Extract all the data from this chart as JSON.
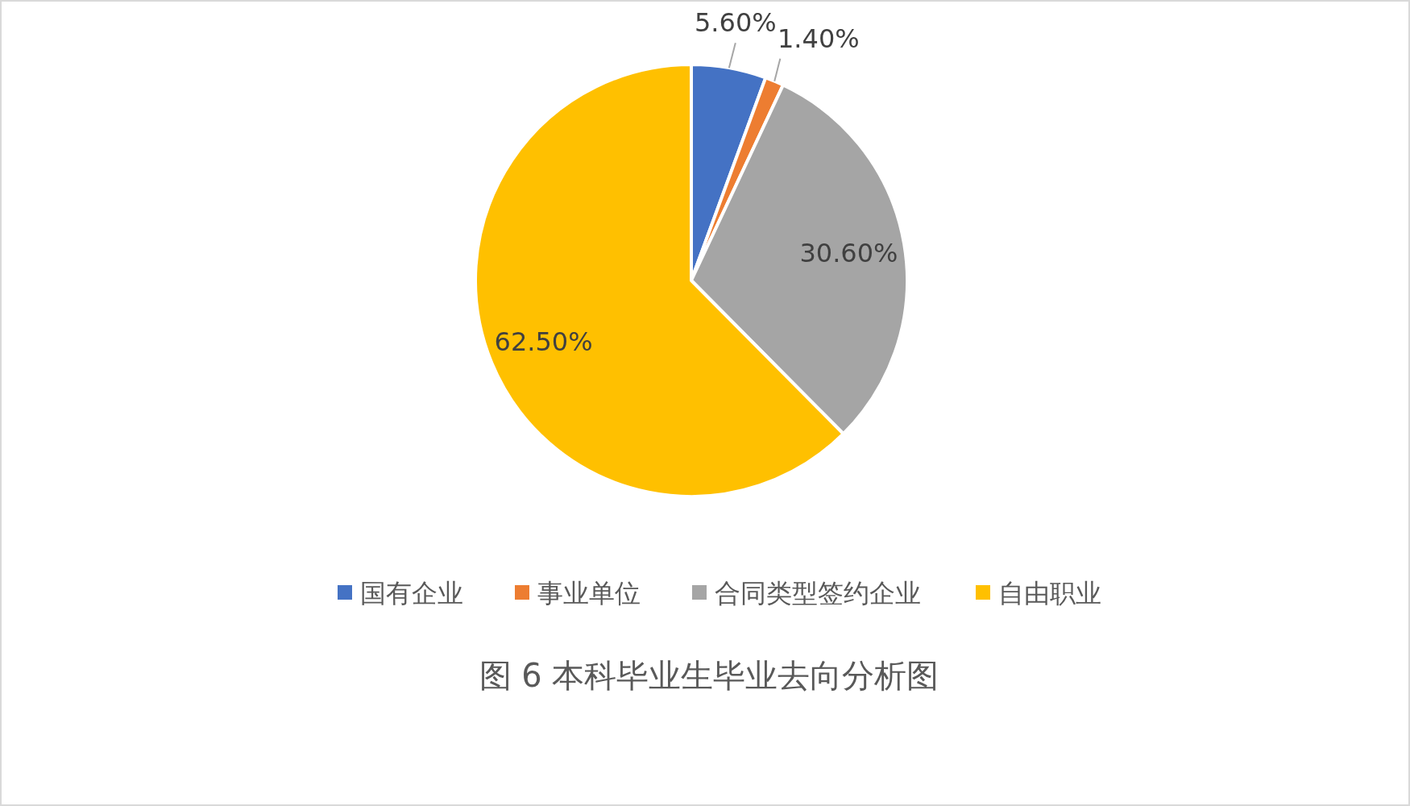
{
  "chart_data": {
    "type": "pie",
    "title": "图 6  本科毕业生毕业去向分析图",
    "categories": [
      "国有企业",
      "事业单位",
      "合同类型签约企业",
      "自由职业"
    ],
    "values": [
      5.6,
      1.4,
      30.6,
      62.5
    ],
    "colors": [
      "#4472c4",
      "#ed7d31",
      "#a5a5a5",
      "#ffc000"
    ],
    "value_labels": [
      "5.60%",
      "1.40%",
      "30.60%",
      "62.50%"
    ],
    "legend": "bottom"
  }
}
